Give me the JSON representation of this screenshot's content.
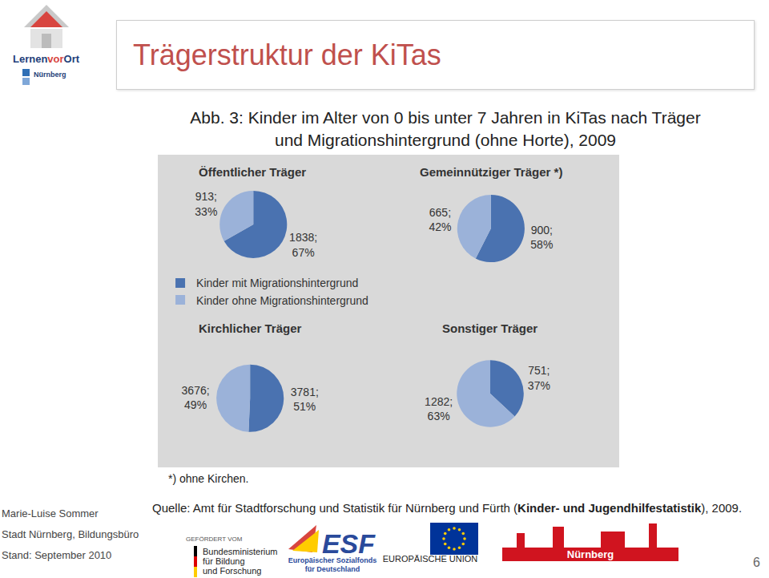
{
  "slide": {
    "title": "Trägerstruktur der KiTas",
    "logo": {
      "words": [
        "Lernen",
        "vor",
        "Ort"
      ],
      "city": "Nürnberg"
    },
    "figure_title": [
      "Abb. 3: Kinder im Alter von 0 bis unter 7 Jahren in KiTas nach Träger",
      "und Migrationshintergrund (ohne Horte), 2009"
    ],
    "footnote": "*) ohne Kirchen.",
    "source": [
      "Quelle: Amt für Stadtforschung und Statistik für Nürnberg und Fürth (",
      "Kinder- und Jugendhilfestatistik",
      "), 2009."
    ],
    "author": [
      "Marie-Luise Sommer",
      "Stadt Nürnberg, Bildungsbüro",
      "Stand: September 2010"
    ],
    "funding": {
      "label": "GEFÖRDERT VOM",
      "ministry": [
        "Bundesministerium",
        "für Bildung",
        "und Forschung"
      ],
      "esf": "ESF",
      "esf_text": [
        "Europäischer Sozialfonds",
        "für Deutschland"
      ],
      "eu": "EUROPÄISCHE UNION",
      "city": "Nürnberg"
    },
    "page": "6"
  },
  "chart_data": [
    {
      "type": "pie",
      "title": "Öffentlicher Träger",
      "categories": [
        "Kinder mit Migrationshintergrund",
        "Kinder ohne Migrationshintergrund"
      ],
      "values": [
        1838,
        913
      ],
      "value_labels": [
        "1838; 67%",
        "913; 33%"
      ],
      "colors": [
        "#4a72b0",
        "#9bb2d9"
      ],
      "data_labels": true,
      "legend": "bottom"
    },
    {
      "type": "pie",
      "title": "Gemeinnütziger Träger *)",
      "categories": [
        "Kinder mit Migrationshintergrund",
        "Kinder ohne Migrationshintergrund"
      ],
      "values": [
        900,
        665
      ],
      "value_labels": [
        "900; 58%",
        "665; 42%"
      ],
      "colors": [
        "#4a72b0",
        "#9bb2d9"
      ],
      "data_labels": true,
      "legend": "bottom"
    },
    {
      "type": "pie",
      "title": "Kirchlicher Träger",
      "categories": [
        "Kinder mit Migrationshintergrund",
        "Kinder ohne Migrationshintergrund"
      ],
      "values": [
        3781,
        3676
      ],
      "value_labels": [
        "3781; 51%",
        "3676; 49%"
      ],
      "colors": [
        "#4a72b0",
        "#9bb2d9"
      ],
      "data_labels": true,
      "legend": "bottom"
    },
    {
      "type": "pie",
      "title": "Sonstiger Träger",
      "categories": [
        "Kinder mit Migrationshintergrund",
        "Kinder ohne Migrationshintergrund"
      ],
      "values": [
        751,
        1282
      ],
      "value_labels": [
        "751; 37%",
        "1282; 63%"
      ],
      "colors": [
        "#4a72b0",
        "#9bb2d9"
      ],
      "data_labels": true,
      "legend": "bottom"
    }
  ]
}
